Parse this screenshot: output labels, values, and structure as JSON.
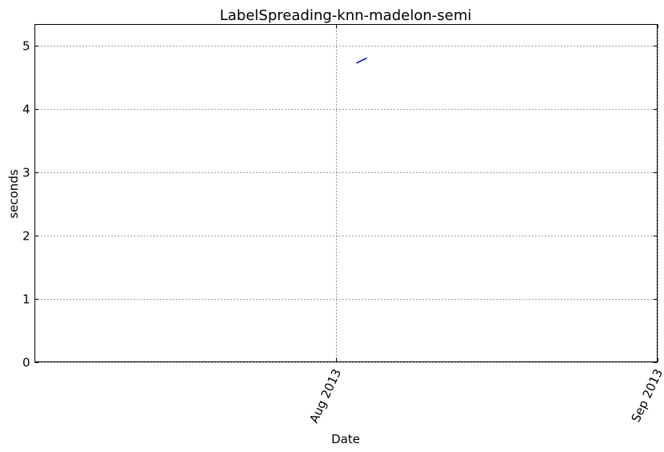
{
  "chart_data": {
    "type": "line",
    "title": "LabelSpreading-knn-madelon-semi",
    "xlabel": "Date",
    "ylabel": "seconds",
    "x_axis": "date",
    "xlim": [
      "2013-07-03",
      "2013-09-01"
    ],
    "ylim": [
      0,
      5.33
    ],
    "yticks": [
      0,
      1,
      2,
      3,
      4,
      5
    ],
    "xticks": [
      {
        "date": "2013-08-01",
        "label": "Aug 2013"
      },
      {
        "date": "2013-09-01",
        "label": "Sep 2013"
      }
    ],
    "grid": true,
    "series": [
      {
        "color": "#0000cc",
        "x": [
          "2013-08-03",
          "2013-08-04"
        ],
        "y": [
          4.72,
          4.8
        ]
      }
    ]
  }
}
